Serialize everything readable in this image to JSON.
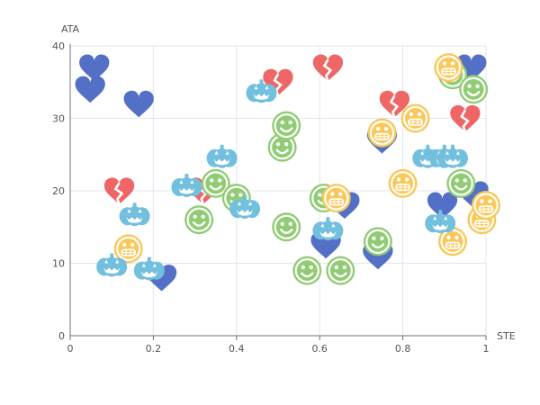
{
  "chart_data": {
    "type": "scatter",
    "xlabel": "STE",
    "ylabel": "ATA",
    "xlim": [
      0,
      1
    ],
    "ylim": [
      0,
      40
    ],
    "x_ticks": [
      "0",
      "0.2",
      "0.4",
      "0.6",
      "0.8",
      "1"
    ],
    "y_ticks": [
      "0",
      "10",
      "20",
      "30",
      "40"
    ],
    "grid": true,
    "colors": {
      "heart": "#5470c6",
      "broken-heart": "#ee6666",
      "smiley": "#91cc75",
      "grin": "#fac858",
      "pumpkin": "#73c0de",
      "grid": "#e0e6f1",
      "axis": "#6e7079"
    },
    "series": [
      {
        "symbol": "heart",
        "points": [
          [
            0.058,
            37.0
          ],
          [
            0.048,
            34.0
          ],
          [
            0.165,
            32.0
          ],
          [
            0.22,
            8.0
          ],
          [
            0.615,
            12.5
          ],
          [
            0.66,
            18.0
          ],
          [
            0.74,
            11.0
          ],
          [
            0.75,
            27.0
          ],
          [
            0.895,
            18.0
          ],
          [
            0.97,
            19.5
          ],
          [
            0.965,
            37.0
          ]
        ]
      },
      {
        "symbol": "broken-heart",
        "points": [
          [
            0.118,
            20.0
          ],
          [
            0.32,
            20.0
          ],
          [
            0.5,
            35.0
          ],
          [
            0.62,
            37.0
          ],
          [
            0.78,
            32.0
          ],
          [
            0.95,
            30.0
          ]
        ]
      },
      {
        "symbol": "smiley",
        "points": [
          [
            0.31,
            16.0
          ],
          [
            0.35,
            21.0
          ],
          [
            0.4,
            19.0
          ],
          [
            0.51,
            26.0
          ],
          [
            0.52,
            29.0
          ],
          [
            0.52,
            15.0
          ],
          [
            0.57,
            9.0
          ],
          [
            0.61,
            19.0
          ],
          [
            0.65,
            9.0
          ],
          [
            0.74,
            13.0
          ],
          [
            0.92,
            36.0
          ],
          [
            0.94,
            21.0
          ],
          [
            0.97,
            34.0
          ]
        ]
      },
      {
        "symbol": "grin",
        "points": [
          [
            0.14,
            12.0
          ],
          [
            0.64,
            19.0
          ],
          [
            0.75,
            28.0
          ],
          [
            0.8,
            21.0
          ],
          [
            0.83,
            30.0
          ],
          [
            0.91,
            37.0
          ],
          [
            0.92,
            13.0
          ],
          [
            0.99,
            16.0
          ],
          [
            1.0,
            18.0
          ]
        ]
      },
      {
        "symbol": "pumpkin",
        "points": [
          [
            0.1,
            9.5
          ],
          [
            0.155,
            16.5
          ],
          [
            0.19,
            9.0
          ],
          [
            0.28,
            20.5
          ],
          [
            0.365,
            24.5
          ],
          [
            0.42,
            17.5
          ],
          [
            0.46,
            33.5
          ],
          [
            0.62,
            14.5
          ],
          [
            0.86,
            24.5
          ],
          [
            0.89,
            15.5
          ],
          [
            0.9,
            24.5
          ],
          [
            0.92,
            24.5
          ]
        ]
      }
    ]
  }
}
